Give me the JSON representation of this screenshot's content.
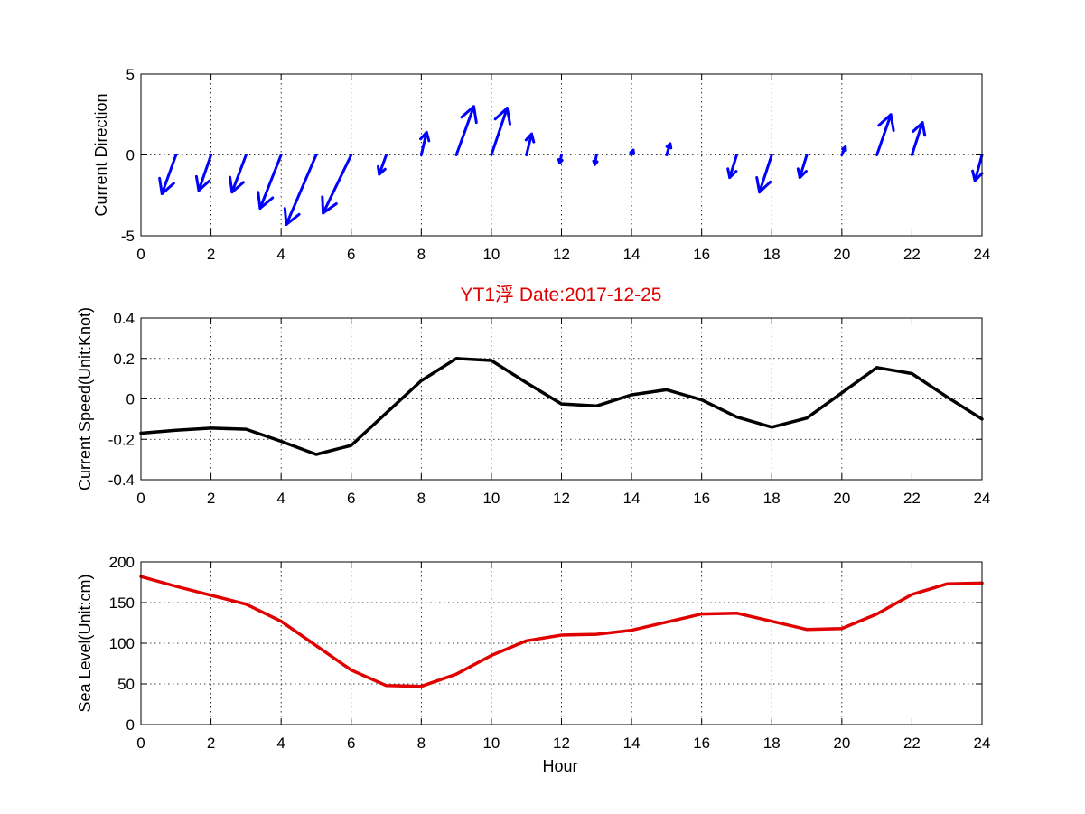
{
  "figure": {
    "title": "YT1浮   Date:2017-12-25",
    "title_color": "#e00000",
    "xlabel": "Hour"
  },
  "chart_data": [
    {
      "type": "quiver",
      "ylabel": "Current Direction",
      "xlim": [
        0,
        24
      ],
      "ylim": [
        -5,
        5
      ],
      "xticks": [
        0,
        2,
        4,
        6,
        8,
        10,
        12,
        14,
        16,
        18,
        20,
        22,
        24
      ],
      "yticks": [
        -5,
        0,
        5
      ],
      "grid": true,
      "color": "#0000ff",
      "x": [
        0,
        1,
        2,
        3,
        4,
        5,
        6,
        7,
        8,
        9,
        10,
        11,
        12,
        13,
        14,
        15,
        16,
        17,
        18,
        19,
        20,
        21,
        22,
        23,
        24
      ],
      "u": [
        0,
        -0.4,
        -0.35,
        -0.4,
        -0.6,
        -0.85,
        -0.8,
        -0.2,
        0.15,
        0.5,
        0.45,
        0.15,
        -0.05,
        -0.05,
        0.05,
        0.1,
        0,
        -0.2,
        -0.35,
        -0.2,
        0.1,
        0.4,
        0.3,
        0,
        -0.2
      ],
      "v": [
        0,
        -2.4,
        -2.2,
        -2.3,
        -3.3,
        -4.3,
        -3.6,
        -1.2,
        1.4,
        3.0,
        2.9,
        1.3,
        -0.5,
        -0.6,
        0.3,
        0.7,
        0,
        -1.4,
        -2.3,
        -1.4,
        0.5,
        2.5,
        2.0,
        0,
        -1.6
      ]
    },
    {
      "type": "line",
      "ylabel": "Current Speed(Unit:Knot)",
      "xlim": [
        0,
        24
      ],
      "ylim": [
        -0.4,
        0.4
      ],
      "xticks": [
        0,
        2,
        4,
        6,
        8,
        10,
        12,
        14,
        16,
        18,
        20,
        22,
        24
      ],
      "yticks": [
        -0.4,
        -0.2,
        0,
        0.2,
        0.4
      ],
      "ytick_labels": [
        "-0.4",
        "-0.2",
        "0",
        "0.2",
        "0.4"
      ],
      "grid": true,
      "color": "#000000",
      "x": [
        0,
        1,
        2,
        3,
        4,
        5,
        6,
        7,
        8,
        9,
        10,
        11,
        12,
        13,
        14,
        15,
        16,
        17,
        18,
        19,
        20,
        21,
        22,
        23,
        24
      ],
      "y": [
        -0.17,
        -0.155,
        -0.145,
        -0.15,
        -0.21,
        -0.275,
        -0.23,
        -0.07,
        0.09,
        0.2,
        0.19,
        0.08,
        -0.025,
        -0.035,
        0.02,
        0.045,
        -0.005,
        -0.09,
        -0.14,
        -0.095,
        0.03,
        0.155,
        0.125,
        0.01,
        -0.1
      ]
    },
    {
      "type": "line",
      "ylabel": "Sea Level(Unit:cm)",
      "xlim": [
        0,
        24
      ],
      "ylim": [
        0,
        200
      ],
      "xticks": [
        0,
        2,
        4,
        6,
        8,
        10,
        12,
        14,
        16,
        18,
        20,
        22,
        24
      ],
      "yticks": [
        0,
        50,
        100,
        150,
        200
      ],
      "ytick_labels": [
        "0",
        "50",
        "100",
        "150",
        "200"
      ],
      "grid": true,
      "color": "#e00000",
      "x": [
        0,
        1,
        2,
        3,
        4,
        5,
        6,
        7,
        8,
        9,
        10,
        11,
        12,
        13,
        14,
        15,
        16,
        17,
        18,
        19,
        20,
        21,
        22,
        23,
        24
      ],
      "y": [
        182,
        170,
        159,
        148,
        127,
        97,
        67,
        48,
        47,
        62,
        85,
        103,
        110,
        111,
        116,
        126,
        136,
        137,
        127,
        117,
        118,
        136,
        160,
        173,
        174
      ]
    }
  ]
}
